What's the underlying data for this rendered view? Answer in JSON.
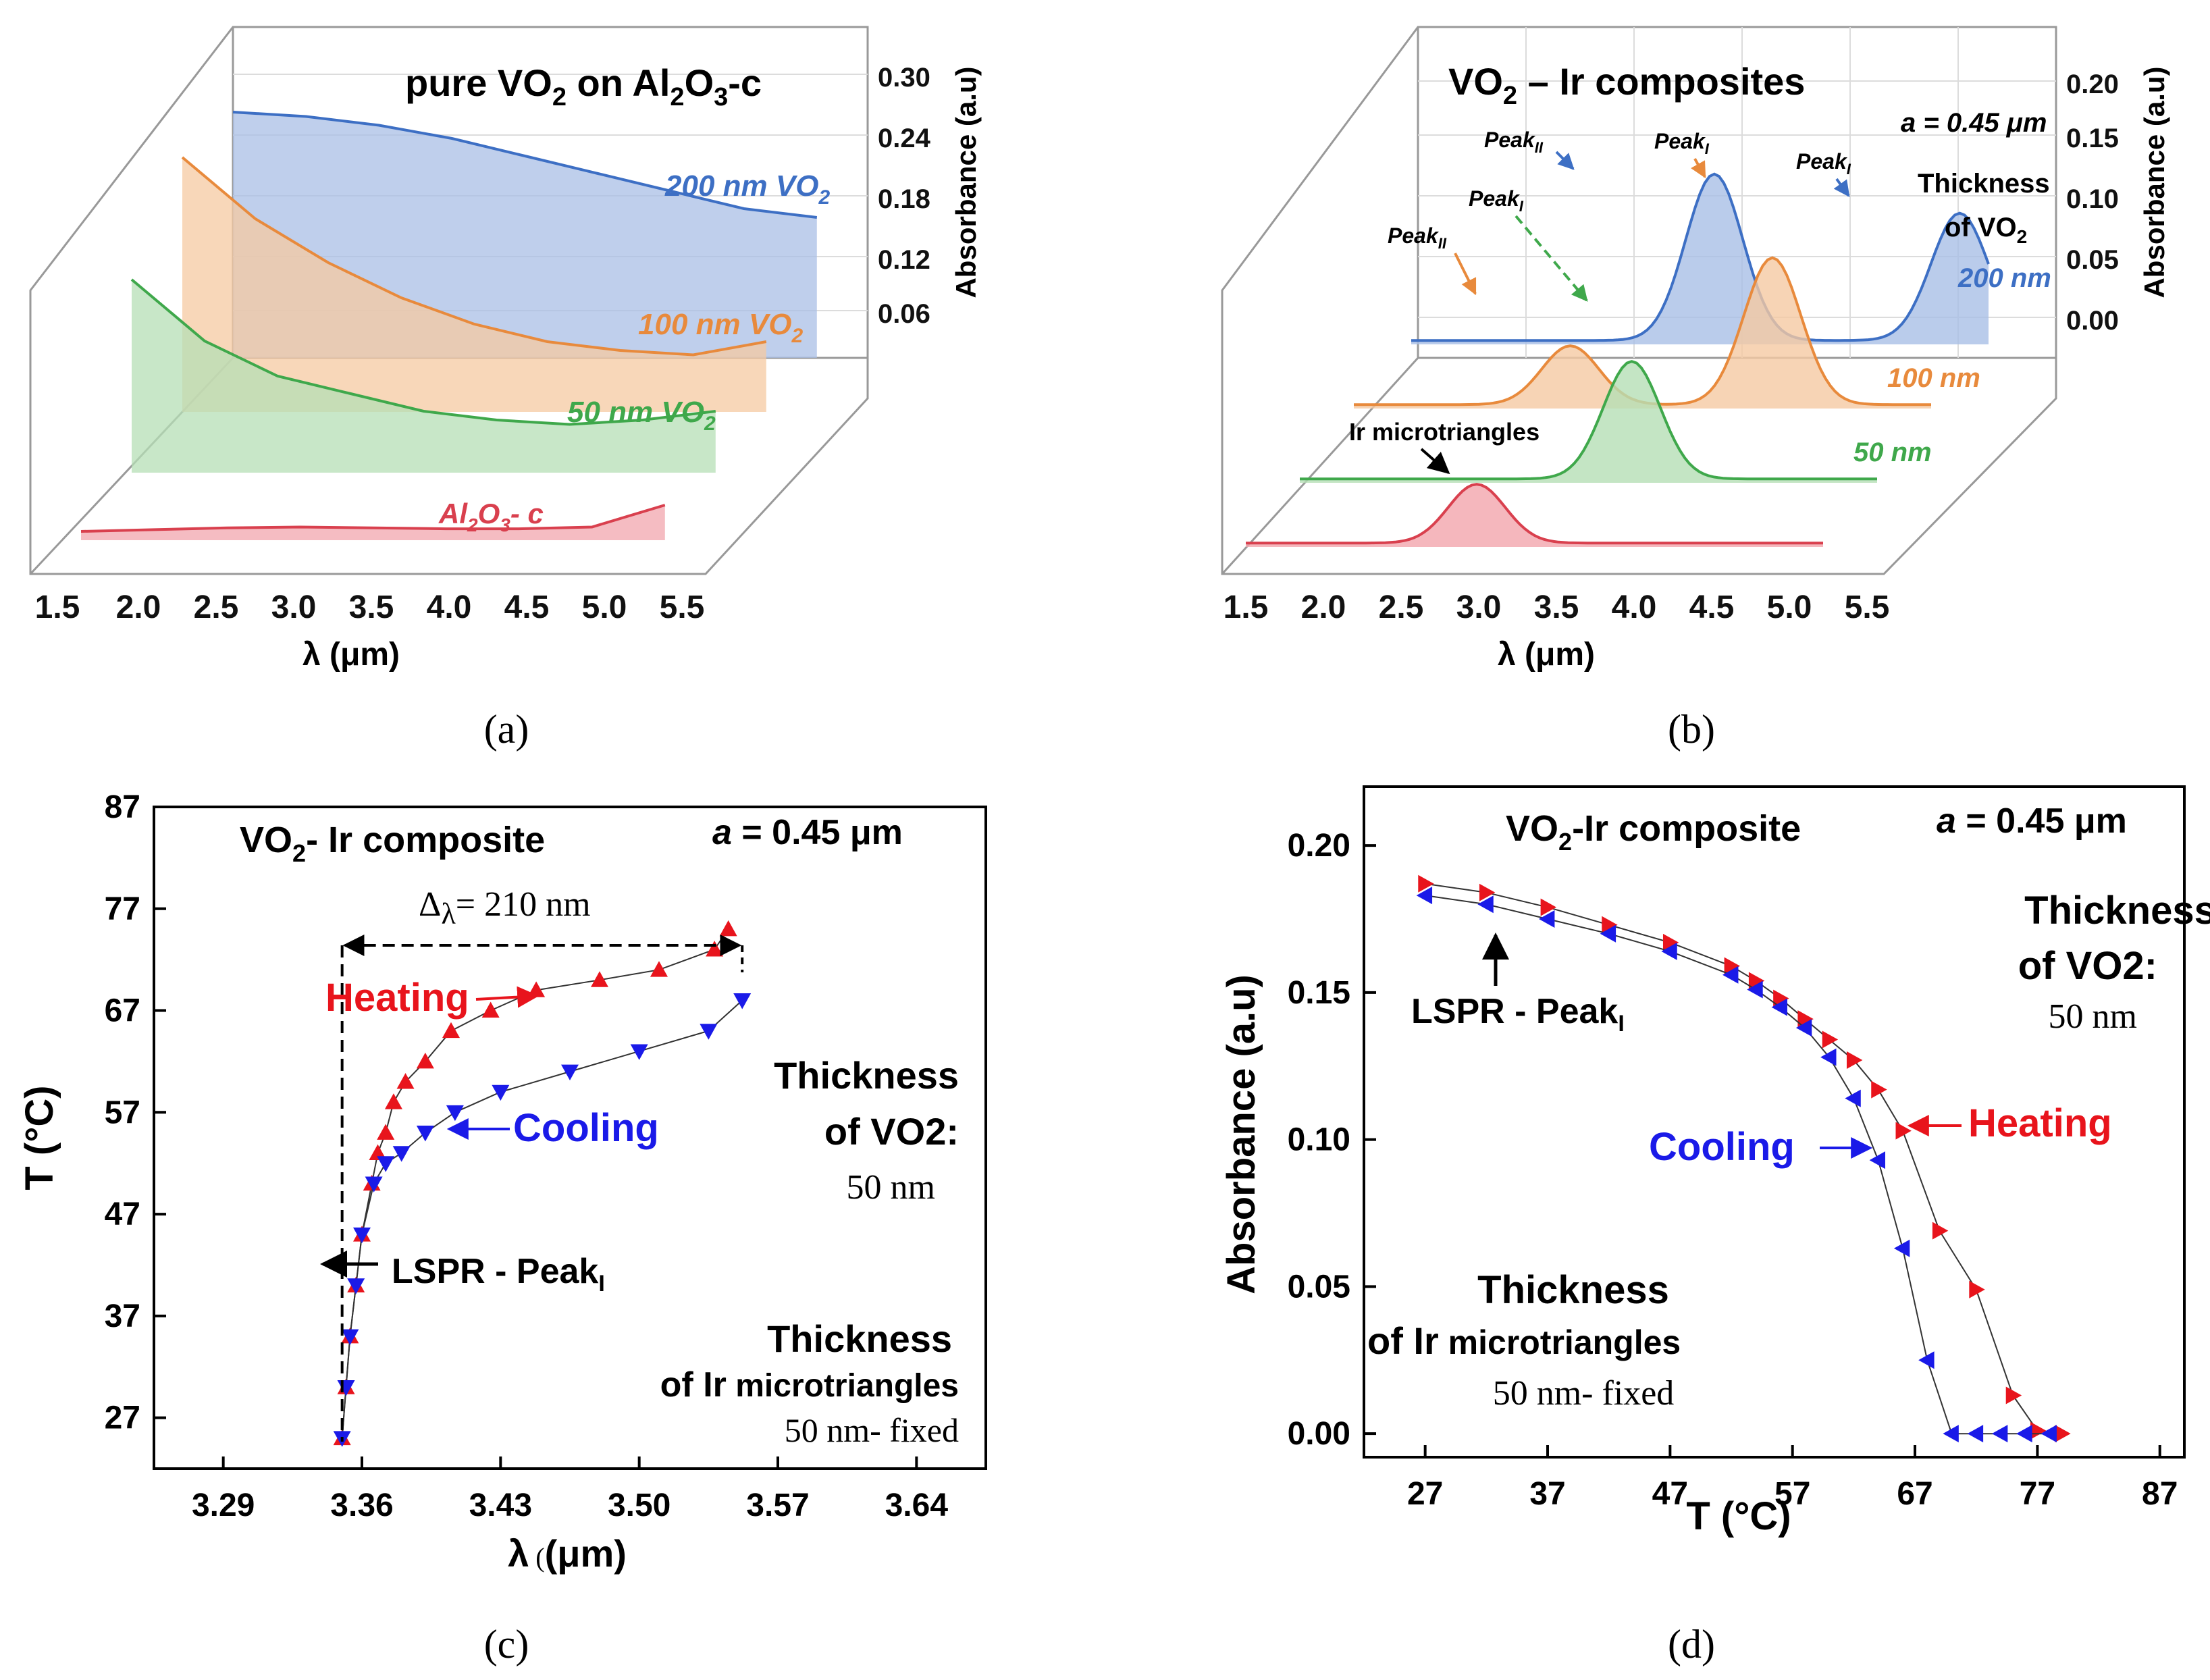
{
  "panels": {
    "a": {
      "label": "(a)"
    },
    "b": {
      "label": "(b)"
    },
    "c": {
      "label": "(c)"
    },
    "d": {
      "label": "(d)"
    }
  },
  "chart_data": [
    {
      "id": "a",
      "type": "area",
      "title_pre": "pure VO",
      "title_sub1": "2",
      "title_mid": " on Al",
      "title_sub2": "2",
      "title_mid2": "O",
      "title_sub3": "3",
      "title_post": "-c",
      "xlabel": "λ (μm)",
      "ylabel": "Absorbance (a.u)",
      "x_ticks": [
        "1.5",
        "2.0",
        "2.5",
        "3.0",
        "3.5",
        "4.0",
        "4.5",
        "5.0",
        "5.5"
      ],
      "y_ticks": [
        "0.06",
        "0.12",
        "0.18",
        "0.24",
        "0.30"
      ],
      "x": [
        1.5,
        2.0,
        2.5,
        3.0,
        3.5,
        4.0,
        4.5,
        5.0,
        5.5
      ],
      "series": [
        {
          "name": "200 nm VO2",
          "label_main": "200 nm VO",
          "label_sub": "2",
          "color": "#3d6fc4",
          "fill": "#a9bfe6",
          "values": [
            0.28,
            0.275,
            0.265,
            0.25,
            0.23,
            0.21,
            0.19,
            0.17,
            0.16
          ]
        },
        {
          "name": "100 nm VO2",
          "label_main": "100 nm VO",
          "label_sub": "2",
          "color": "#e88a3c",
          "fill": "#f5c9a2",
          "values": [
            0.29,
            0.22,
            0.17,
            0.13,
            0.1,
            0.08,
            0.07,
            0.065,
            0.08
          ]
        },
        {
          "name": "50 nm VO2",
          "label_main": "50 nm VO",
          "label_sub": "2",
          "color": "#3fa84b",
          "fill": "#b5dfb5",
          "values": [
            0.22,
            0.15,
            0.11,
            0.09,
            0.07,
            0.06,
            0.055,
            0.06,
            0.07
          ]
        },
        {
          "name": "Al2O3- c",
          "label_main": "Al",
          "label_sub": "2",
          "label_mid": "O",
          "label_sub2": "3",
          "label_post": "- c",
          "color": "#d9404e",
          "fill": "#f2a5ad",
          "values": [
            0.01,
            0.012,
            0.014,
            0.015,
            0.014,
            0.013,
            0.013,
            0.015,
            0.04
          ]
        }
      ]
    },
    {
      "id": "b",
      "type": "area",
      "title_pre": "VO",
      "title_sub1": "2",
      "title_post": " – Ir composites",
      "xlabel": "λ (μm)",
      "ylabel": "Absorbance (a.u)",
      "x_ticks": [
        "1.5",
        "2.0",
        "2.5",
        "3.0",
        "3.5",
        "4.0",
        "4.5",
        "5.0",
        "5.5"
      ],
      "y_ticks": [
        "0.00",
        "0.05",
        "0.10",
        "0.15",
        "0.20"
      ],
      "annotation_a": "a = 0.45 μm",
      "thickness_label1": "Thickness",
      "thickness_label2": "of VO",
      "thickness_sub": "2",
      "peak_I": "Peak",
      "peak_I_sub": "I",
      "peak_II": "Peak",
      "peak_II_sub": "II",
      "ir_label": "Ir microtriangles",
      "series": [
        {
          "name": "200 nm",
          "color": "#3d6fc4",
          "fill": "#a9bfe6",
          "peaks": [
            [
              3.6,
              0.17
            ],
            [
              5.3,
              0.13
            ]
          ]
        },
        {
          "name": "100 nm",
          "color": "#e88a3c",
          "fill": "#f5c9a2",
          "peaks": [
            [
              3.0,
              0.06
            ],
            [
              4.4,
              0.15
            ]
          ]
        },
        {
          "name": "50 nm",
          "color": "#3fa84b",
          "fill": "#b5dfb5",
          "peaks": [
            [
              3.8,
              0.12
            ]
          ]
        },
        {
          "name": "Ir microtriangles",
          "color": "#d9404e",
          "fill": "#f2a5ad",
          "peaks": [
            [
              3.1,
              0.06
            ]
          ]
        }
      ]
    },
    {
      "id": "c",
      "type": "scatter",
      "title_pre": "VO",
      "title_sub": "2",
      "title_post": "- Ir composite",
      "annotation_a_italic": "a",
      "annotation_a_rest": " = 0.45 μm",
      "delta_label_pre": "Δ",
      "delta_label_sub": "λ",
      "delta_label_post": "= 210 nm",
      "xlabel_pre": "λ",
      "xlabel_post": "(μm)",
      "ylabel": "T (°C)",
      "xlim": [
        3.255,
        3.675
      ],
      "ylim": [
        22,
        87
      ],
      "x_ticks": [
        3.29,
        3.36,
        3.43,
        3.5,
        3.57,
        3.64
      ],
      "x_tick_labels": [
        "3.29",
        "3.36",
        "3.43",
        "3.50",
        "3.57",
        "3.64"
      ],
      "y_ticks": [
        27,
        37,
        47,
        57,
        67,
        77,
        87
      ],
      "y_tick_labels": [
        "27",
        "37",
        "47",
        "57",
        "67",
        "77",
        "87"
      ],
      "heating_label": "Heating",
      "cooling_label": "Cooling",
      "lspr_label": "LSPR - Peak",
      "lspr_sub": "I",
      "thick1": "Thickness",
      "thick2": "of VO",
      "thick2_sub": "2",
      "thick2_post": ":",
      "thick3": "50 nm",
      "ir1": "Thickness",
      "ir2_pre": "of Ir",
      "ir2_post": " microtriangles",
      "ir3": "50 nm- fixed",
      "heating_color": "#e8141c",
      "cooling_color": "#1a1ae8",
      "series": [
        {
          "name": "Heating",
          "x": [
            3.35,
            3.352,
            3.354,
            3.357,
            3.36,
            3.365,
            3.368,
            3.372,
            3.376,
            3.382,
            3.392,
            3.405,
            3.425,
            3.448,
            3.48,
            3.51,
            3.538,
            3.545
          ],
          "y": [
            25,
            30,
            35,
            40,
            45,
            50,
            53,
            55,
            58,
            60,
            62,
            65,
            67,
            69,
            70,
            71,
            73,
            75
          ]
        },
        {
          "name": "Cooling",
          "x": [
            3.35,
            3.352,
            3.354,
            3.357,
            3.36,
            3.366,
            3.372,
            3.38,
            3.392,
            3.407,
            3.43,
            3.465,
            3.5,
            3.535,
            3.552
          ],
          "y": [
            25,
            30,
            35,
            40,
            45,
            50,
            52,
            53,
            55,
            57,
            59,
            61,
            63,
            65,
            68
          ]
        }
      ]
    },
    {
      "id": "d",
      "type": "scatter",
      "title_pre": "VO",
      "title_sub": "2",
      "title_post": "-Ir composite",
      "annotation_a_italic": "a",
      "annotation_a_rest": " = 0.45 μm",
      "xlabel": "T (°C)",
      "ylabel": "Absorbance (a.u)",
      "xlim": [
        22,
        89
      ],
      "ylim": [
        -0.008,
        0.22
      ],
      "x_ticks": [
        27,
        37,
        47,
        57,
        67,
        77,
        87
      ],
      "x_tick_labels": [
        "27",
        "37",
        "47",
        "57",
        "67",
        "77",
        "87"
      ],
      "y_ticks": [
        0.0,
        0.05,
        0.1,
        0.15,
        0.2
      ],
      "y_tick_labels": [
        "0.00",
        "0.05",
        "0.10",
        "0.15",
        "0.20"
      ],
      "heating_label": "Heating",
      "cooling_label": "Cooling",
      "lspr_label": "LSPR - Peak",
      "lspr_sub": "I",
      "thick1": "Thickness",
      "thick2": "of VO",
      "thick2_sub": "2",
      "thick2_post": ":",
      "thick3": "50 nm",
      "ir1": "Thickness",
      "ir2_pre": "of Ir",
      "ir2_post": " microtriangles",
      "ir3": "50 nm- fixed",
      "heating_color": "#e8141c",
      "cooling_color": "#1a1ae8",
      "series": [
        {
          "name": "Heating",
          "x": [
            27,
            32,
            37,
            42,
            47,
            52,
            54,
            56,
            58,
            60,
            62,
            64,
            66,
            69,
            72,
            75,
            77,
            79
          ],
          "y": [
            0.187,
            0.184,
            0.179,
            0.173,
            0.167,
            0.159,
            0.154,
            0.148,
            0.141,
            0.134,
            0.127,
            0.117,
            0.103,
            0.069,
            0.049,
            0.013,
            0.001,
            0.0
          ]
        },
        {
          "name": "Cooling",
          "x": [
            27,
            32,
            37,
            42,
            47,
            52,
            54,
            56,
            58,
            60,
            62,
            64,
            66,
            68,
            70,
            72,
            74,
            76,
            78
          ],
          "y": [
            0.183,
            0.18,
            0.175,
            0.17,
            0.164,
            0.156,
            0.151,
            0.145,
            0.138,
            0.128,
            0.114,
            0.093,
            0.063,
            0.025,
            0.0,
            0.0,
            0.0,
            0.0,
            0.0
          ]
        }
      ]
    }
  ]
}
